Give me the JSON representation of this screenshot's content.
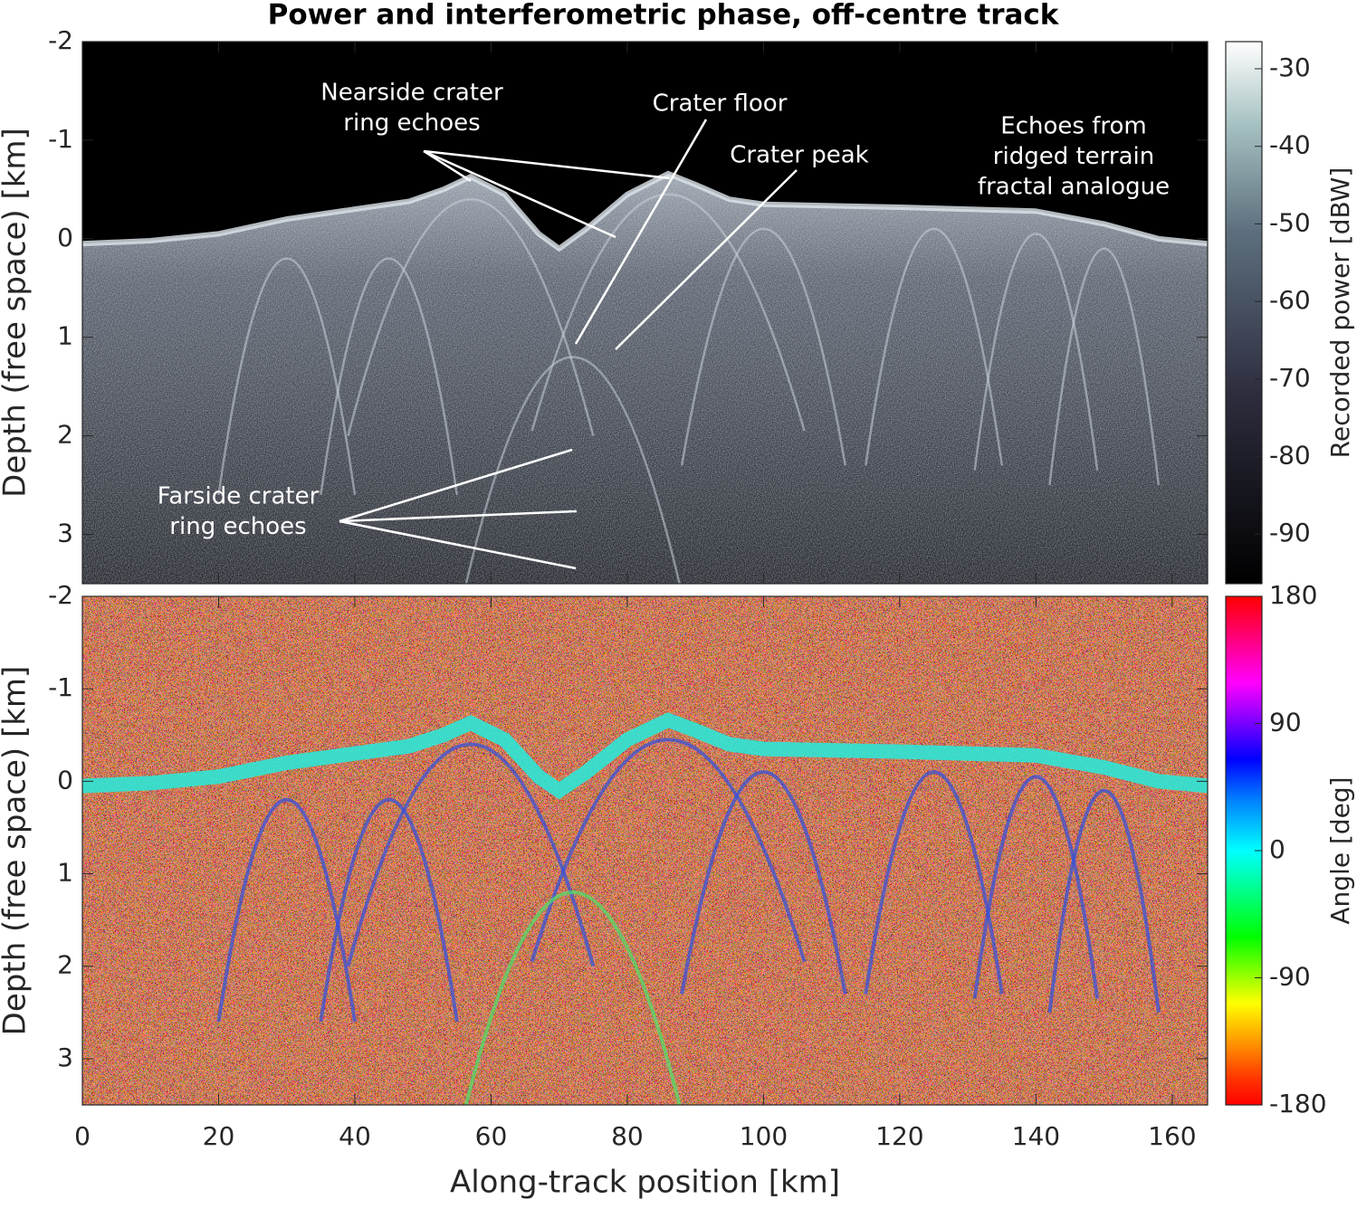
{
  "chart_data": [
    {
      "type": "heatmap",
      "title": "Power and interferometric phase, off-centre track",
      "ylabel": "Depth (free space) [km]",
      "xlim": [
        0,
        165.2
      ],
      "ylim": [
        -2,
        3.5
      ],
      "y_direction": "reverse",
      "yticks": [
        -2,
        -1,
        0,
        1,
        2,
        3
      ],
      "colorbar": {
        "label": "Recorded power [dBW]",
        "clim": [
          -96.4,
          -26.5
        ],
        "ticks": [
          -30,
          -40,
          -50,
          -60,
          -70,
          -80,
          -90
        ],
        "colormap": "bone"
      },
      "annotations": [
        {
          "lines": [
            "Nearside crater",
            "ring echoes"
          ]
        },
        {
          "lines": [
            "Crater floor"
          ]
        },
        {
          "lines": [
            "Crater peak"
          ]
        },
        {
          "lines": [
            "Echoes from",
            "ridged terrain",
            "fractal analogue"
          ]
        },
        {
          "lines": [
            "Farside crater",
            "ring echoes"
          ]
        }
      ]
    },
    {
      "type": "heatmap",
      "ylabel": "Depth (free space) [km]",
      "xlabel": "Along-track position [km]",
      "xlim": [
        0,
        165.2
      ],
      "ylim": [
        -2,
        3.5
      ],
      "y_direction": "reverse",
      "xticks": [
        0,
        20,
        40,
        60,
        80,
        100,
        120,
        140,
        160
      ],
      "yticks": [
        -2,
        -1,
        0,
        1,
        2,
        3
      ],
      "colorbar": {
        "label": "Angle [deg]",
        "clim": [
          -180,
          180
        ],
        "ticks": [
          180,
          90,
          0,
          -90,
          -180
        ],
        "colormap": "hsv"
      }
    }
  ]
}
